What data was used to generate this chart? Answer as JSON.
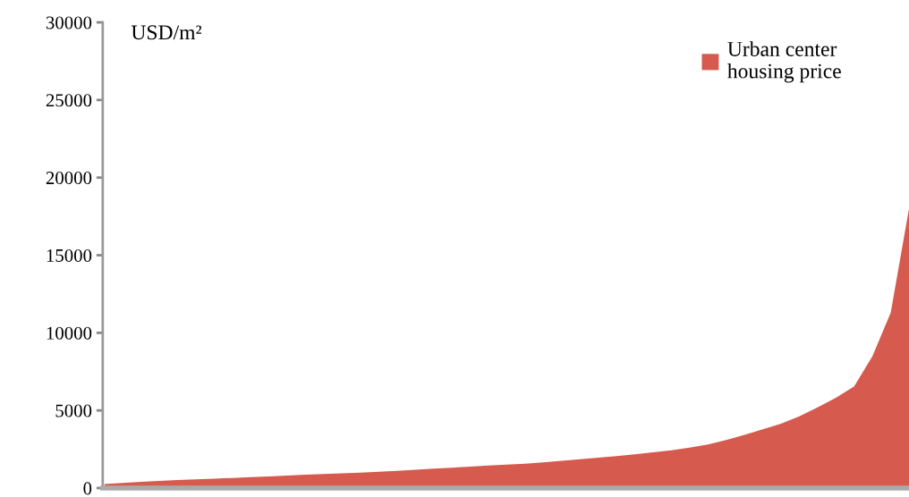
{
  "chart_data": {
    "type": "area",
    "ylabel": "USD/m²",
    "categories": [
      null,
      null,
      null,
      null,
      null,
      null,
      null,
      null,
      null,
      null,
      null,
      null,
      null,
      null,
      null,
      null,
      null,
      null,
      null,
      null,
      null,
      null,
      null,
      null,
      null,
      null,
      null,
      null,
      null,
      null,
      null,
      null,
      null,
      null,
      null,
      null,
      null,
      null,
      null,
      null,
      null,
      null,
      null,
      null,
      null
    ],
    "series": [
      {
        "name": "Urban center\nhousing price",
        "color": "#d65a4e",
        "values": [
          260,
          330,
          400,
          460,
          520,
          560,
          600,
          650,
          700,
          750,
          810,
          860,
          900,
          950,
          990,
          1050,
          1110,
          1180,
          1250,
          1310,
          1380,
          1450,
          1510,
          1570,
          1660,
          1760,
          1860,
          1960,
          2060,
          2170,
          2300,
          2430,
          2600,
          2800,
          3100,
          3420,
          3780,
          4150,
          4620,
          5200,
          5810,
          6550,
          8500,
          11300,
          18000
        ]
      }
    ],
    "ylim": [
      0,
      30000
    ],
    "yticks": [
      0,
      5000,
      10000,
      15000,
      20000,
      25000,
      30000
    ],
    "grid": false,
    "legend": "top right"
  }
}
